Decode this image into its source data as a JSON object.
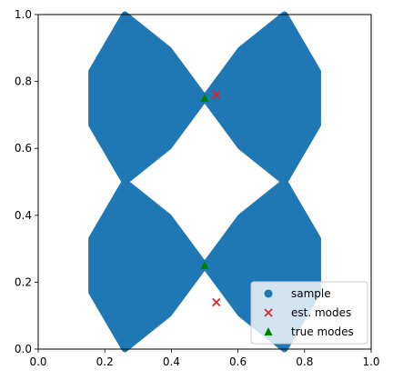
{
  "chart_data": {
    "type": "scatter",
    "xlim": [
      0,
      1
    ],
    "ylim": [
      0,
      1
    ],
    "x_ticks": [
      "0.0",
      "0.2",
      "0.4",
      "0.6",
      "0.8",
      "1.0"
    ],
    "y_ticks": [
      "0.0",
      "0.2",
      "0.4",
      "0.6",
      "0.8",
      "1.0"
    ],
    "grid": false,
    "legend_position": "lower-right",
    "series": [
      {
        "name": "sample",
        "marker": "circle",
        "color": "#1f77b4",
        "regions": [
          {
            "shape": "diamond",
            "x": [
              0.16,
              0.36
            ],
            "apexes": [
              [
                0.26,
                0.5
              ],
              [
                0.26,
                1.0
              ]
            ],
            "center": [
              0.5,
              0.75
            ]
          },
          {
            "shape": "diamond",
            "x": [
              0.64,
              0.84
            ],
            "apexes": [
              [
                0.74,
                0.5
              ],
              [
                0.74,
                1.0
              ]
            ],
            "center": [
              0.5,
              0.75
            ]
          },
          {
            "shape": "diamond",
            "x": [
              0.16,
              0.36
            ],
            "apexes": [
              [
                0.26,
                0.0
              ],
              [
                0.26,
                0.5
              ]
            ],
            "center": [
              0.5,
              0.25
            ]
          },
          {
            "shape": "diamond",
            "x": [
              0.64,
              0.84
            ],
            "apexes": [
              [
                0.74,
                0.0
              ],
              [
                0.74,
                0.5
              ]
            ],
            "center": [
              0.5,
              0.25
            ]
          }
        ]
      },
      {
        "name": "est. modes",
        "marker": "x",
        "color": "#d62728",
        "points": [
          [
            0.535,
            0.76
          ],
          [
            0.535,
            0.14
          ]
        ]
      },
      {
        "name": "true modes",
        "marker": "triangle",
        "color": "#008000",
        "points": [
          [
            0.5,
            0.75
          ],
          [
            0.5,
            0.25
          ]
        ]
      }
    ]
  }
}
